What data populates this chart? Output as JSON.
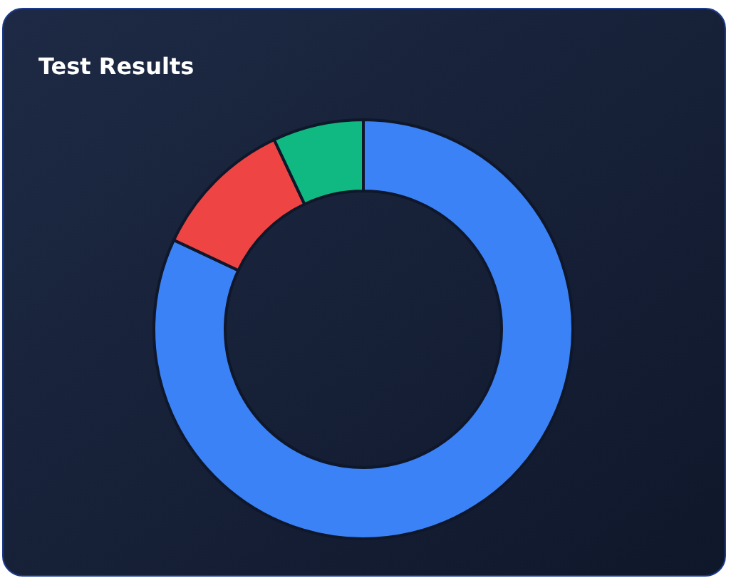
{
  "chart_data": {
    "type": "donut",
    "title": "Test Results",
    "categories": [
      null,
      null,
      null
    ],
    "values": [
      82,
      11,
      7
    ],
    "colors": [
      "#3b82f6",
      "#ef4444",
      "#10b981"
    ],
    "legend": false
  }
}
